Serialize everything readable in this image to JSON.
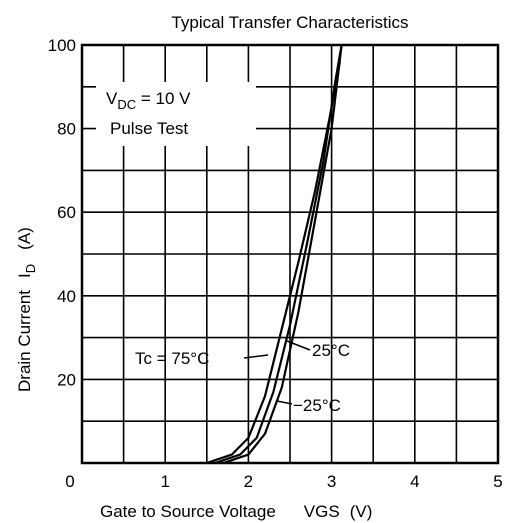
{
  "chart_data": {
    "type": "line",
    "title": "Typical Transfer Characteristics",
    "x_label": {
      "main": "Gate to Source Voltage",
      "symbol": "VGS",
      "unit": "(V)"
    },
    "y_label": {
      "main": "Drain Current",
      "symbol": "I",
      "sub": "D",
      "unit": "(A)"
    },
    "condition": {
      "symbol": "V",
      "sub": "DC",
      "rest": " = 10 V",
      "note": "Pulse Test"
    },
    "xlim": [
      0,
      5
    ],
    "ylim": [
      0,
      100
    ],
    "xticks": [
      0,
      1,
      2,
      3,
      4,
      5
    ],
    "yticks": [
      20,
      40,
      60,
      80,
      100
    ],
    "xminor": [
      0.5,
      1.5,
      2.5,
      3.5,
      4.5
    ],
    "yminor": [
      10,
      30,
      50,
      70,
      90
    ],
    "grid": true,
    "series": [
      {
        "name": "Tc = 75°C",
        "color": "#000000",
        "x": [
          1.5,
          1.8,
          2.0,
          2.2,
          2.4,
          2.6,
          2.8,
          3.0,
          3.1
        ],
        "values": [
          0,
          2,
          6,
          16,
          32,
          48,
          65,
          85,
          96
        ]
      },
      {
        "name": "25°C",
        "color": "#000000",
        "x": [
          1.6,
          1.9,
          2.1,
          2.3,
          2.5,
          2.7,
          2.9,
          3.05,
          3.12
        ],
        "values": [
          0,
          2,
          6,
          17,
          33,
          52,
          72,
          92,
          100
        ]
      },
      {
        "name": "−25°C",
        "color": "#000000",
        "x": [
          1.7,
          2.0,
          2.2,
          2.4,
          2.6,
          2.8,
          3.0,
          3.12
        ],
        "values": [
          0,
          2,
          7,
          18,
          36,
          58,
          80,
          100
        ]
      }
    ]
  }
}
